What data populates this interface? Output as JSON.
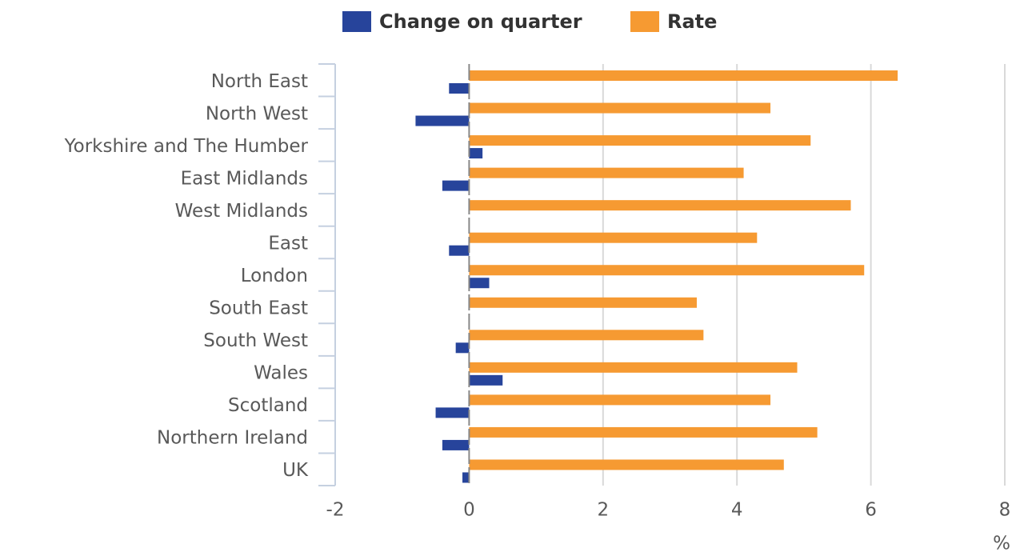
{
  "chart_data": {
    "type": "bar",
    "orientation": "horizontal",
    "categories": [
      "North East",
      "North West",
      "Yorkshire and The Humber",
      "East Midlands",
      "West Midlands",
      "East",
      "London",
      "South East",
      "South West",
      "Wales",
      "Scotland",
      "Northern Ireland",
      "UK"
    ],
    "series": [
      {
        "name": "Change on quarter",
        "color": "#27449b",
        "values": [
          -0.3,
          -0.8,
          0.2,
          -0.4,
          0,
          -0.3,
          0.3,
          0,
          -0.2,
          0.5,
          -0.5,
          -0.4,
          -0.1
        ]
      },
      {
        "name": "Rate",
        "color": "#f69a32",
        "values": [
          6.4,
          4.5,
          5.1,
          4.1,
          5.7,
          4.3,
          5.9,
          3.4,
          3.5,
          4.9,
          4.5,
          5.2,
          4.7
        ]
      }
    ],
    "x_label": "%",
    "xlim": [
      -2,
      8
    ],
    "xticks": [
      -2,
      0,
      2,
      4,
      6,
      8
    ],
    "grid": true,
    "legend": "top"
  }
}
